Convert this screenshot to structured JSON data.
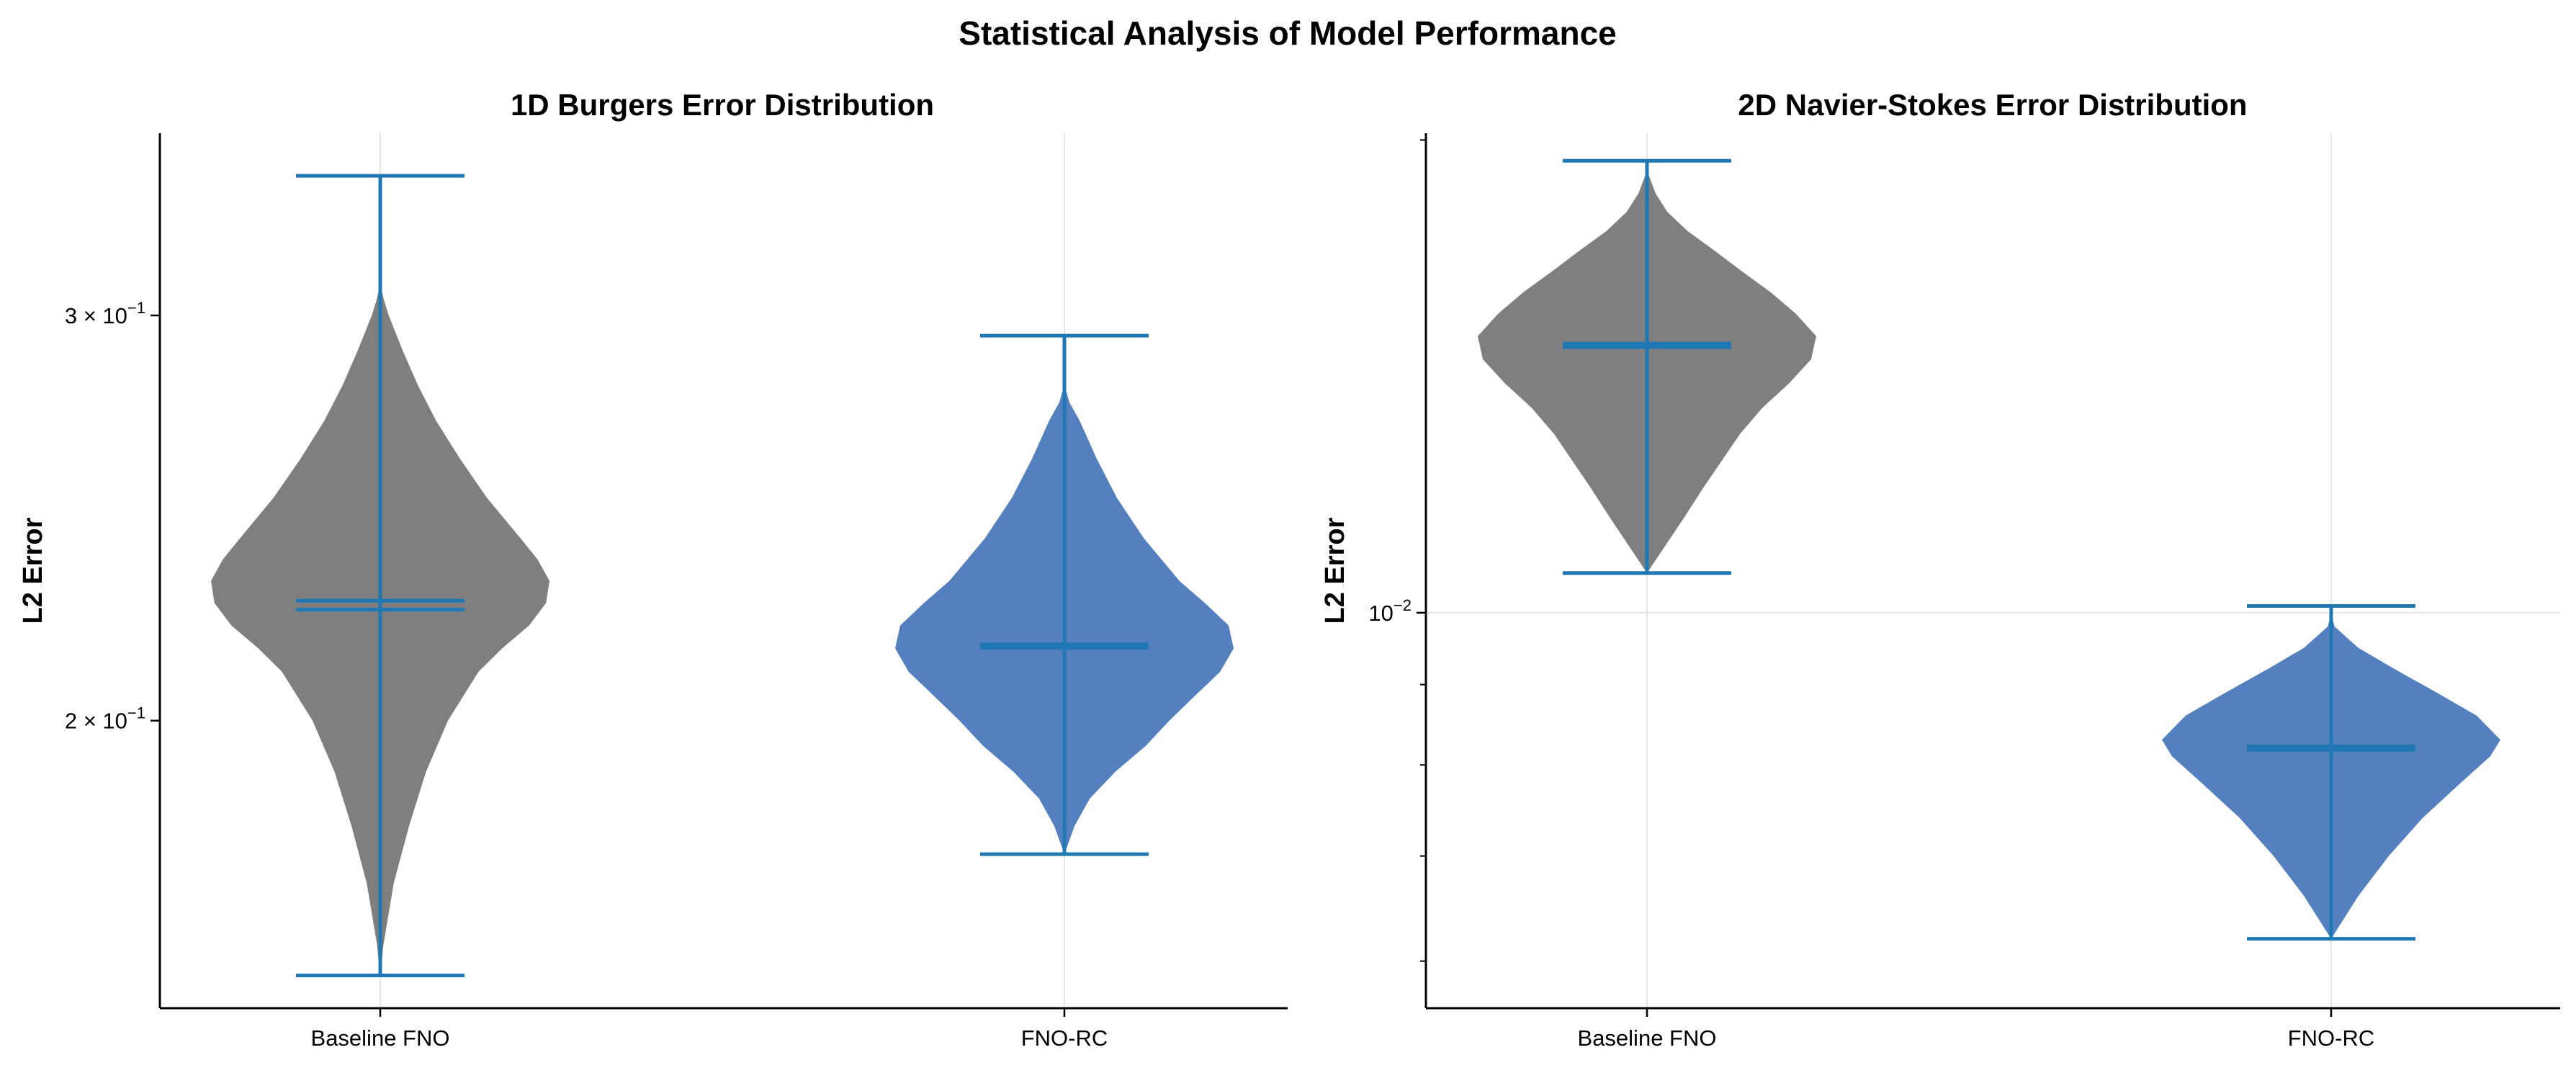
{
  "figure": {
    "title": "Statistical Analysis of Model Performance"
  },
  "chart_data": [
    {
      "type": "violin",
      "title": "1D Burgers Error Distribution",
      "xlabel": "",
      "ylabel": "L2 Error",
      "yscale": "log",
      "ylim": [
        0.15,
        0.36
      ],
      "yticks": [
        {
          "value": 0.3,
          "mantissa": "3",
          "exp": "−1"
        },
        {
          "value": 0.2,
          "mantissa": "2",
          "exp": "−1"
        }
      ],
      "categories": [
        "Baseline FNO",
        "FNO-RC"
      ],
      "grid": "vertical at category positions",
      "violins": [
        {
          "category": "Baseline FNO",
          "color": "#7f7f7f",
          "min": 0.155,
          "max": 0.345,
          "mean": 0.2255,
          "median": 0.2235,
          "density": [
            [
              0.155,
              0.0
            ],
            [
              0.16,
              0.02
            ],
            [
              0.17,
              0.08
            ],
            [
              0.18,
              0.17
            ],
            [
              0.19,
              0.27
            ],
            [
              0.2,
              0.4
            ],
            [
              0.21,
              0.58
            ],
            [
              0.215,
              0.72
            ],
            [
              0.22,
              0.88
            ],
            [
              0.225,
              0.98
            ],
            [
              0.23,
              1.0
            ],
            [
              0.235,
              0.93
            ],
            [
              0.24,
              0.83
            ],
            [
              0.25,
              0.63
            ],
            [
              0.26,
              0.47
            ],
            [
              0.27,
              0.33
            ],
            [
              0.28,
              0.22
            ],
            [
              0.29,
              0.13
            ],
            [
              0.3,
              0.05
            ],
            [
              0.305,
              0.02
            ],
            [
              0.31,
              0.0
            ]
          ]
        },
        {
          "category": "FNO-RC",
          "color": "#5480bf",
          "min": 0.175,
          "max": 0.294,
          "mean": 0.2155,
          "median": 0.2155,
          "density": [
            [
              0.175,
              0.0
            ],
            [
              0.18,
              0.06
            ],
            [
              0.185,
              0.15
            ],
            [
              0.19,
              0.3
            ],
            [
              0.195,
              0.48
            ],
            [
              0.2,
              0.62
            ],
            [
              0.205,
              0.77
            ],
            [
              0.21,
              0.92
            ],
            [
              0.215,
              1.0
            ],
            [
              0.22,
              0.97
            ],
            [
              0.225,
              0.83
            ],
            [
              0.23,
              0.68
            ],
            [
              0.24,
              0.47
            ],
            [
              0.25,
              0.31
            ],
            [
              0.26,
              0.19
            ],
            [
              0.27,
              0.09
            ],
            [
              0.275,
              0.03
            ],
            [
              0.28,
              0.0
            ]
          ]
        }
      ]
    },
    {
      "type": "violin",
      "title": "2D Navier-Stokes Error Distribution",
      "xlabel": "",
      "ylabel": "L2 Error",
      "yscale": "log",
      "ylim": [
        0.0056,
        0.0202
      ],
      "yticks": [
        {
          "value": 0.01,
          "mantissa": "10",
          "exp": "−2"
        }
      ],
      "categories": [
        "Baseline FNO",
        "FNO-RC"
      ],
      "grid": "horizontal at 10^-2, vertical at category positions",
      "violins": [
        {
          "category": "Baseline FNO",
          "color": "#7f7f7f",
          "min": 0.0106,
          "max": 0.0194,
          "mean": 0.0148,
          "median": 0.0148,
          "density": [
            [
              0.0106,
              0.0
            ],
            [
              0.011,
              0.1
            ],
            [
              0.0115,
              0.22
            ],
            [
              0.012,
              0.33
            ],
            [
              0.013,
              0.55
            ],
            [
              0.0135,
              0.68
            ],
            [
              0.014,
              0.84
            ],
            [
              0.0145,
              0.97
            ],
            [
              0.015,
              1.0
            ],
            [
              0.0155,
              0.88
            ],
            [
              0.016,
              0.73
            ],
            [
              0.0165,
              0.56
            ],
            [
              0.017,
              0.4
            ],
            [
              0.0175,
              0.24
            ],
            [
              0.018,
              0.12
            ],
            [
              0.0185,
              0.05
            ],
            [
              0.019,
              0.01
            ],
            [
              0.0194,
              0.0
            ]
          ]
        },
        {
          "category": "FNO-RC",
          "color": "#5480bf",
          "min": 0.0062,
          "max": 0.0101,
          "mean": 0.0082,
          "median": 0.0082,
          "density": [
            [
              0.0062,
              0.0
            ],
            [
              0.0066,
              0.16
            ],
            [
              0.007,
              0.34
            ],
            [
              0.0074,
              0.54
            ],
            [
              0.0078,
              0.77
            ],
            [
              0.0081,
              0.94
            ],
            [
              0.0083,
              1.0
            ],
            [
              0.0086,
              0.86
            ],
            [
              0.0089,
              0.62
            ],
            [
              0.0092,
              0.38
            ],
            [
              0.0095,
              0.16
            ],
            [
              0.0098,
              0.02
            ],
            [
              0.01,
              0.0
            ]
          ]
        }
      ]
    }
  ],
  "colors": {
    "baseline_fill": "#7f7f7f",
    "fno_rc_fill": "#5480bf",
    "line": "#1f77b4",
    "grid": "#e6e6e6",
    "axis": "#000000"
  }
}
